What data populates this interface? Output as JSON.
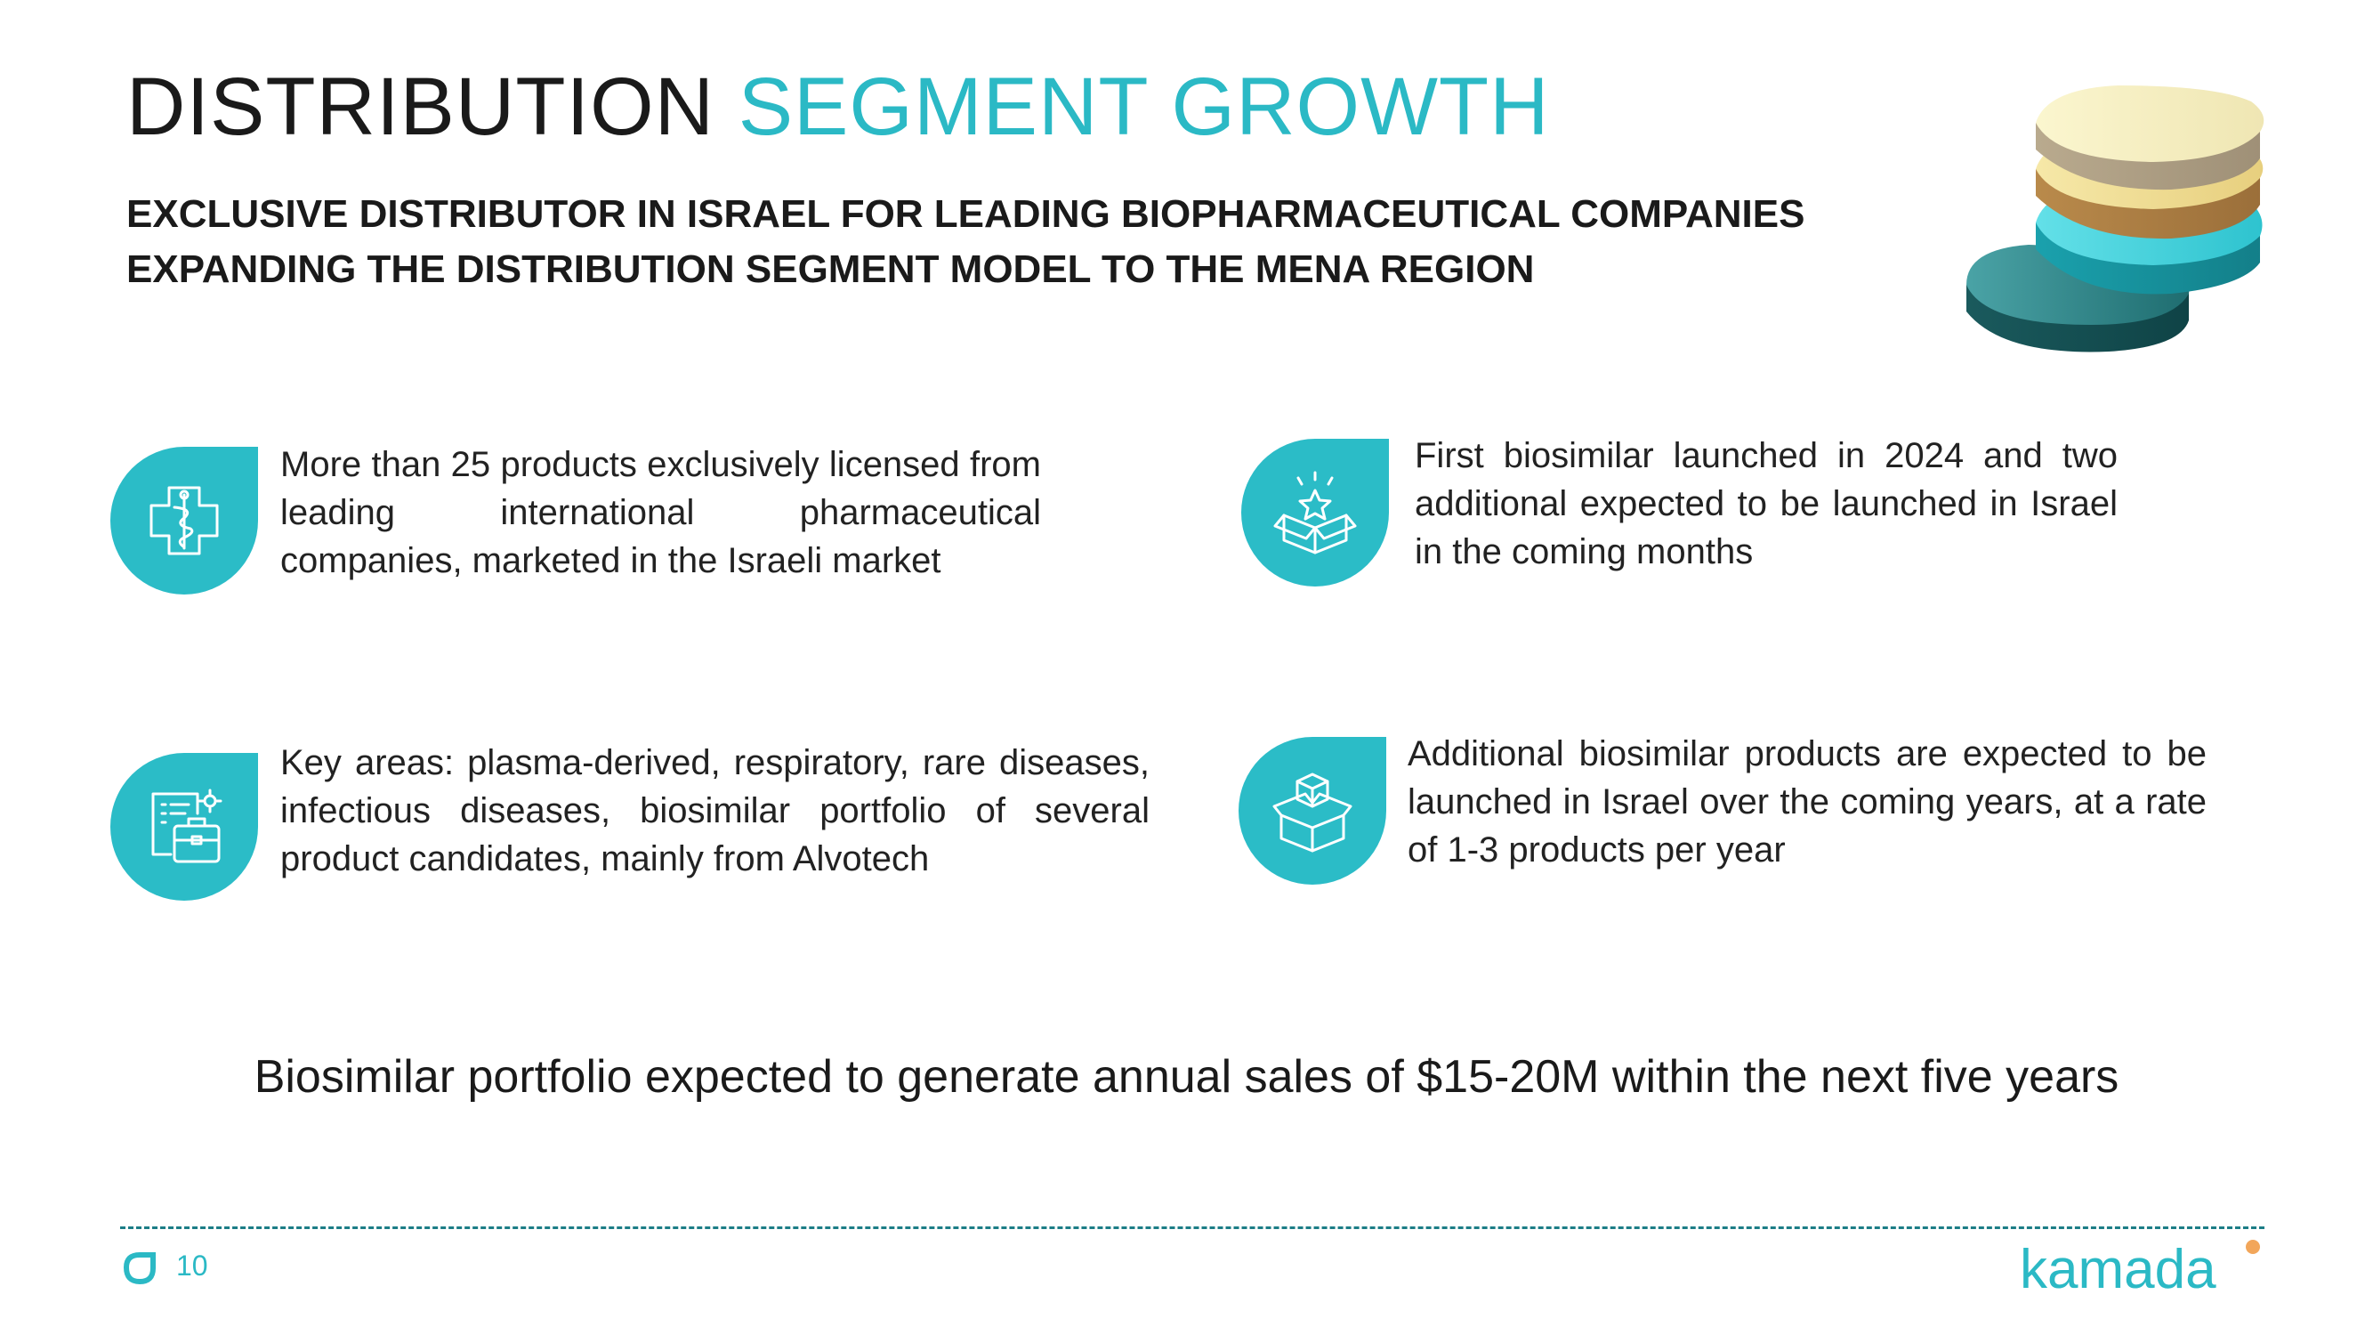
{
  "header": {
    "title_main": "DISTRIBUTION",
    "title_accent": "SEGMENT GROWTH",
    "subtitle_line1": "EXCLUSIVE DISTRIBUTOR IN ISRAEL FOR LEADING BIOPHARMACEUTICAL COMPANIES",
    "subtitle_line2": "EXPANDING THE DISTRIBUTION SEGMENT MODEL TO THE MENA REGION"
  },
  "features": [
    {
      "icon": "medical-cross-caduceus-icon",
      "text": "More than 25 products exclusively licensed from leading international pharmaceutical companies, marketed in the Israeli market"
    },
    {
      "icon": "open-box-star-icon",
      "text": "First biosimilar launched in 2024 and two additional expected to be launched in Israel in the coming months"
    },
    {
      "icon": "briefcase-document-icon",
      "text": "Key areas: plasma-derived, respiratory, rare diseases, infectious diseases, biosimilar portfolio of several product candidates, mainly from Alvotech"
    },
    {
      "icon": "stacked-boxes-icon",
      "text": "Additional biosimilar products are expected to be launched in Israel over the coming years, at a rate of 1-3 products per year"
    }
  ],
  "conclusion": "Biosimilar portfolio expected to generate annual sales of $15-20M within the next five years",
  "footer": {
    "page_number": "10",
    "logo_text": "kamada"
  },
  "colors": {
    "accent": "#2bb9c5",
    "dark_teal": "#1c7d86",
    "logo_dot": "#f2a65a"
  }
}
